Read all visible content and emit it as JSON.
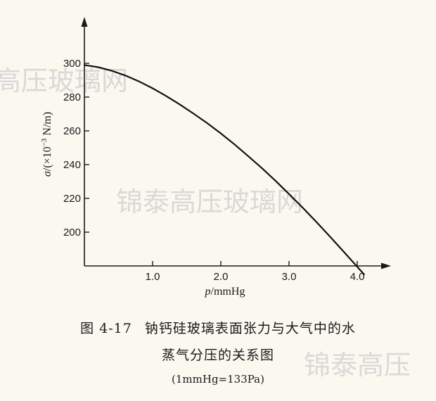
{
  "chart_data": {
    "type": "line",
    "xlabel_var": "p",
    "xlabel_unit": "/mmHg",
    "ylabel_var": "σ",
    "ylabel_unit_prefix": "/(×10",
    "ylabel_unit_exp": "−3",
    "ylabel_unit_suffix": " N/m)",
    "xlim": [
      0,
      4.4
    ],
    "ylim": [
      180,
      320
    ],
    "x_ticks": [
      1.0,
      2.0,
      3.0,
      4.0
    ],
    "x_tick_labels": [
      "1.0",
      "2.0",
      "3.0",
      "4.0"
    ],
    "y_ticks": [
      200,
      220,
      240,
      260,
      280,
      300
    ],
    "y_tick_labels": [
      "200",
      "220",
      "240",
      "260",
      "280",
      "300"
    ],
    "grid": false,
    "series": [
      {
        "x": [
          0,
          0.2,
          0.4,
          0.6,
          0.8,
          1.0,
          1.2,
          1.4,
          1.6,
          1.8,
          2.0,
          2.2,
          2.4,
          2.6,
          2.8,
          3.0,
          3.2,
          3.4,
          3.6,
          3.8,
          4.0,
          4.1
        ],
        "y": [
          299,
          297.7,
          295.6,
          292.8,
          289.3,
          285.2,
          280.6,
          275.6,
          270.2,
          264.6,
          258.5,
          252,
          245.1,
          238,
          230.5,
          222.6,
          214.5,
          206.1,
          197.4,
          188.5,
          179.5,
          175
        ]
      }
    ]
  },
  "caption": {
    "figure_number": "图 4-17",
    "line1": "钠钙硅玻璃表面张力与大气中的水",
    "line2": "蒸气分压的关系图",
    "line3": "(1mmHg=133Pa)"
  },
  "watermarks": {
    "top_left": "高压玻璃网",
    "center": "锦泰高压玻璃网",
    "bottom_right": "锦泰高压"
  }
}
